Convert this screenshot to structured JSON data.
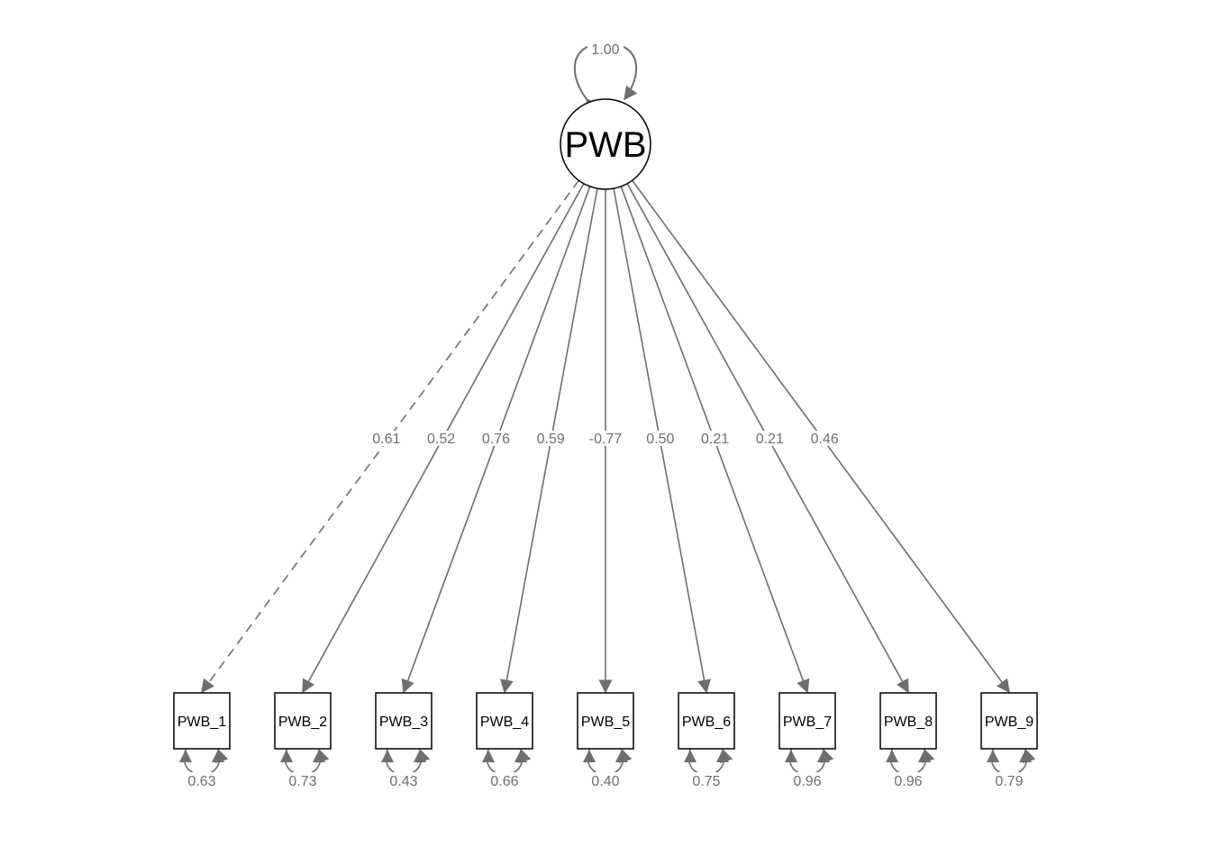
{
  "latent": {
    "name": "PWB",
    "variance": "1.00"
  },
  "indicators": [
    {
      "name": "PWB_1",
      "loading": "0.61",
      "residual": "0.63",
      "fixed": true
    },
    {
      "name": "PWB_2",
      "loading": "0.52",
      "residual": "0.73",
      "fixed": false
    },
    {
      "name": "PWB_3",
      "loading": "0.76",
      "residual": "0.43",
      "fixed": false
    },
    {
      "name": "PWB_4",
      "loading": "0.59",
      "residual": "0.66",
      "fixed": false
    },
    {
      "name": "PWB_5",
      "loading": "-0.77",
      "residual": "0.40",
      "fixed": false
    },
    {
      "name": "PWB_6",
      "loading": "0.50",
      "residual": "0.75",
      "fixed": false
    },
    {
      "name": "PWB_7",
      "loading": "0.21",
      "residual": "0.96",
      "fixed": false
    },
    {
      "name": "PWB_8",
      "loading": "0.21",
      "residual": "0.96",
      "fixed": false
    },
    {
      "name": "PWB_9",
      "loading": "0.46",
      "residual": "0.79",
      "fixed": false
    }
  ],
  "colors": {
    "edge": "#6e6e6e",
    "node_stroke": "#000000",
    "background": "#ffffff"
  }
}
